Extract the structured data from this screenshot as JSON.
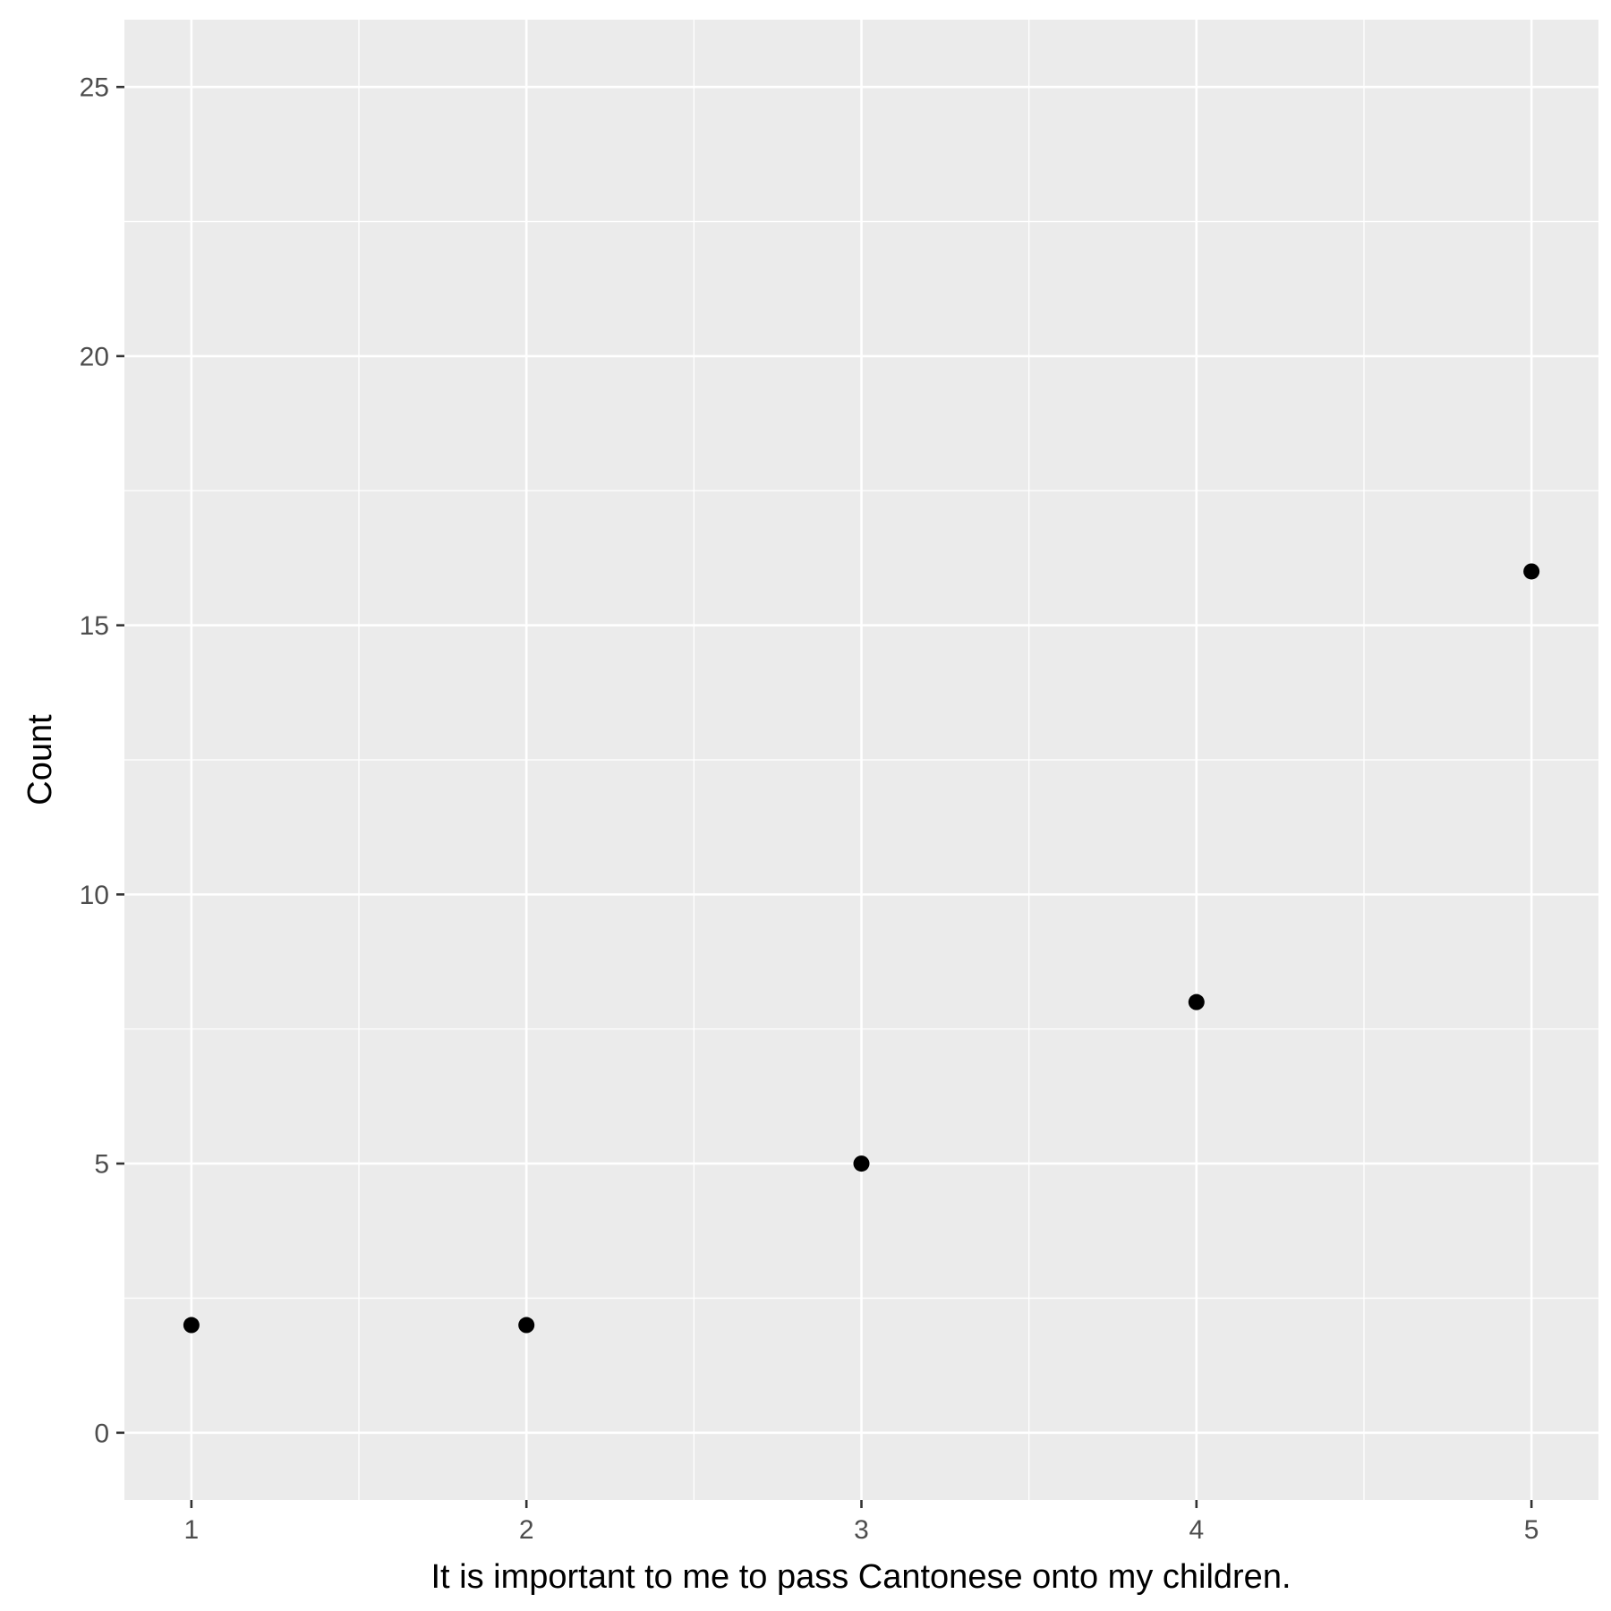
{
  "chart_data": {
    "type": "scatter",
    "title": "",
    "xlabel": "It is important to me to pass Cantonese onto my children.",
    "ylabel": "Count",
    "x": [
      1,
      2,
      3,
      4,
      5
    ],
    "y": [
      2,
      2,
      5,
      8,
      16
    ],
    "xlim": [
      0.8,
      5.2
    ],
    "ylim": [
      -1.25,
      26.25
    ],
    "x_ticks": [
      "1",
      "2",
      "3",
      "4",
      "5"
    ],
    "y_ticks": [
      "0",
      "5",
      "10",
      "15",
      "20",
      "25"
    ],
    "grid": true,
    "legend": "none",
    "colors": {
      "panel_background": "#EBEBEB",
      "grid_line": "#FFFFFF",
      "point": "#000000",
      "tick_text": "#4D4D4D",
      "tick_mark": "#333333"
    }
  }
}
